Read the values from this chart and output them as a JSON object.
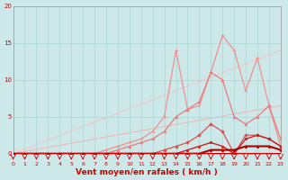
{
  "bg_color": "#cce8e8",
  "grid_color": "#aad4d4",
  "xlabel": "Vent moyen/en rafales ( km/h )",
  "xlabel_color": "#cc0000",
  "xlabel_fontsize": 6.5,
  "tick_color": "#cc0000",
  "xlim": [
    0,
    23
  ],
  "ylim": [
    0,
    20
  ],
  "yticks": [
    0,
    5,
    10,
    15,
    20
  ],
  "xticks": [
    0,
    1,
    2,
    3,
    4,
    5,
    6,
    7,
    8,
    9,
    10,
    11,
    12,
    13,
    14,
    15,
    16,
    17,
    18,
    19,
    20,
    21,
    22,
    23
  ],
  "lines": [
    {
      "x": [
        0,
        23
      ],
      "y": [
        0,
        14.0
      ],
      "color": "#f0c8c8",
      "lw": 0.8,
      "marker": null,
      "ms": 0,
      "zorder": 1
    },
    {
      "x": [
        0,
        23
      ],
      "y": [
        0,
        6.5
      ],
      "color": "#f0b8b8",
      "lw": 0.8,
      "marker": null,
      "ms": 0,
      "zorder": 1
    },
    {
      "x": [
        0,
        1,
        2,
        3,
        4,
        5,
        6,
        7,
        8,
        9,
        10,
        11,
        12,
        13,
        14,
        15,
        16,
        17,
        18,
        19,
        20,
        21,
        22,
        23
      ],
      "y": [
        0,
        0,
        0,
        0,
        0,
        0,
        0,
        0,
        0.5,
        1,
        1.5,
        2,
        3,
        5,
        14,
        6,
        6.5,
        11,
        16,
        14,
        8.5,
        13,
        6.5,
        1
      ],
      "color": "#f09090",
      "lw": 0.9,
      "marker": "+",
      "ms": 2.5,
      "zorder": 2
    },
    {
      "x": [
        0,
        1,
        2,
        3,
        4,
        5,
        6,
        7,
        8,
        9,
        10,
        11,
        12,
        13,
        14,
        15,
        16,
        17,
        18,
        19,
        20,
        21,
        22,
        23
      ],
      "y": [
        0,
        0,
        0,
        0,
        0,
        0,
        0,
        0,
        0,
        0.5,
        1,
        1.5,
        2,
        3,
        5,
        6,
        7,
        11,
        10,
        5,
        4,
        5,
        6.5,
        2
      ],
      "color": "#f07878",
      "lw": 0.9,
      "marker": "^",
      "ms": 2,
      "zorder": 2
    },
    {
      "x": [
        0,
        1,
        2,
        3,
        4,
        5,
        6,
        7,
        8,
        9,
        10,
        11,
        12,
        13,
        14,
        15,
        16,
        17,
        18,
        19,
        20,
        21,
        22,
        23
      ],
      "y": [
        0,
        0,
        0,
        0,
        0,
        0,
        0,
        0,
        0,
        0,
        0,
        0,
        0,
        0.5,
        1,
        1.5,
        2.5,
        4,
        3,
        0,
        2.5,
        2.5,
        2,
        1
      ],
      "color": "#e05050",
      "lw": 0.9,
      "marker": "D",
      "ms": 1.8,
      "zorder": 3
    },
    {
      "x": [
        0,
        1,
        2,
        3,
        4,
        5,
        6,
        7,
        8,
        9,
        10,
        11,
        12,
        13,
        14,
        15,
        16,
        17,
        18,
        19,
        20,
        21,
        22,
        23
      ],
      "y": [
        0,
        0,
        0,
        0,
        0,
        0,
        0,
        0,
        0,
        0,
        0,
        0,
        0,
        0,
        0,
        0.5,
        1,
        1.5,
        1,
        0,
        2,
        2.5,
        2,
        1
      ],
      "color": "#cc2020",
      "lw": 1.0,
      "marker": "s",
      "ms": 1.8,
      "zorder": 3
    },
    {
      "x": [
        0,
        1,
        2,
        3,
        4,
        5,
        6,
        7,
        8,
        9,
        10,
        11,
        12,
        13,
        14,
        15,
        16,
        17,
        18,
        19,
        20,
        21,
        22,
        23
      ],
      "y": [
        0,
        0,
        0,
        0,
        0,
        0,
        0,
        0,
        0,
        0,
        0,
        0,
        0,
        0,
        0,
        0,
        0,
        0.5,
        0.5,
        0.5,
        1,
        1,
        1,
        0.5
      ],
      "color": "#aa0000",
      "lw": 1.5,
      "marker": "s",
      "ms": 1.8,
      "zorder": 4
    }
  ],
  "arrow_color": "#cc0000",
  "baseline_color": "#cc0000",
  "baseline_lw": 1.5
}
